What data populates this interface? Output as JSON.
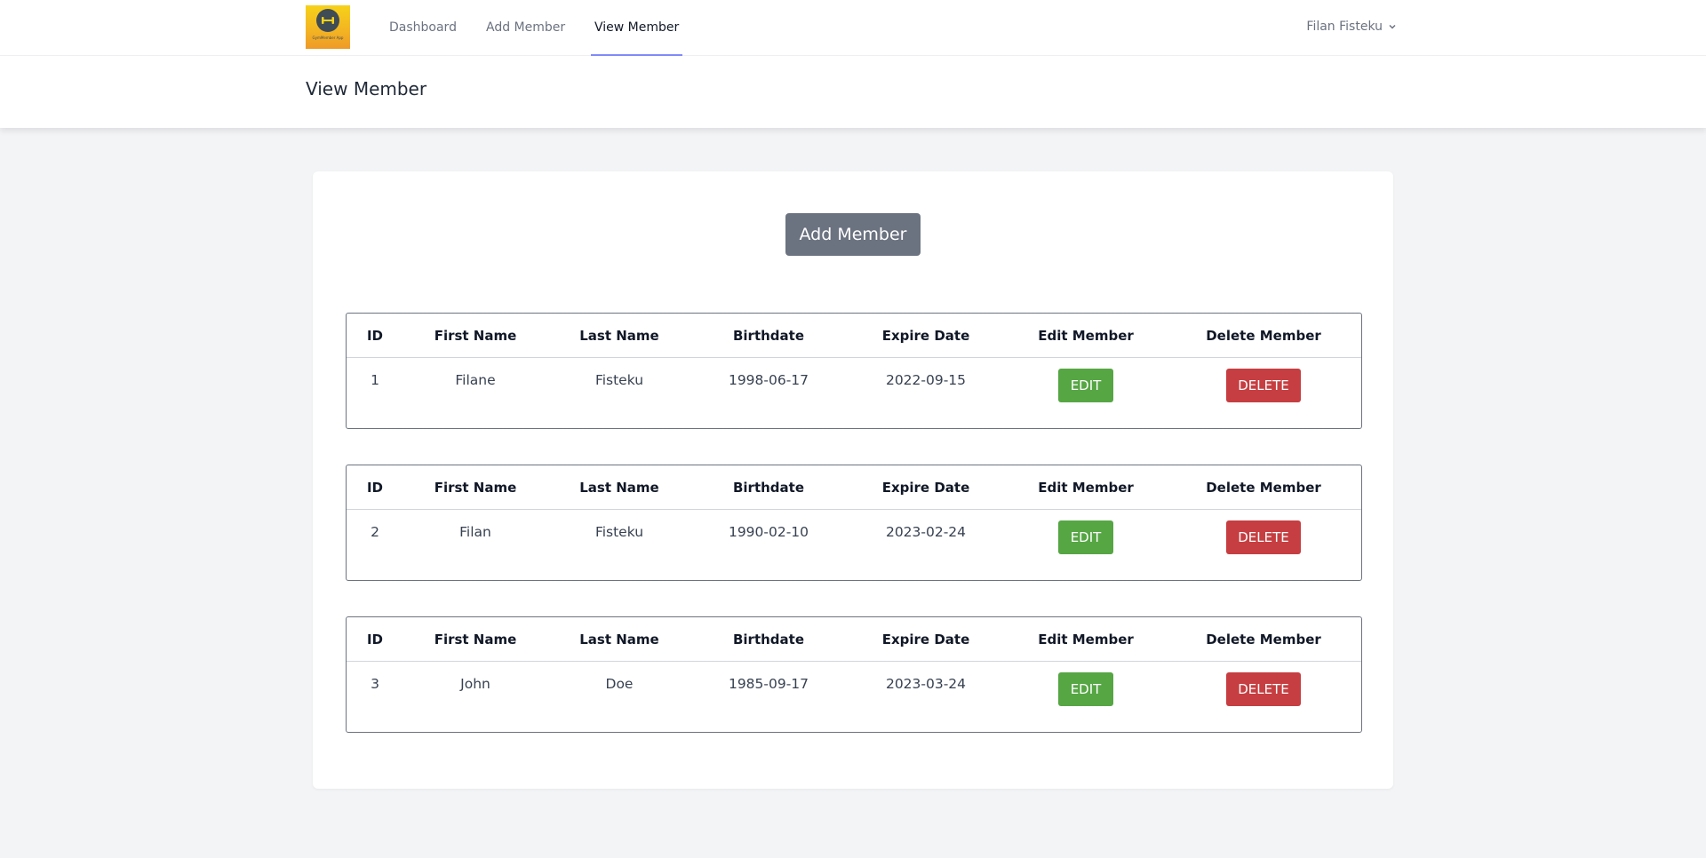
{
  "nav": {
    "logo_text": "GymMember App",
    "links": [
      {
        "label": "Dashboard"
      },
      {
        "label": "Add Member"
      },
      {
        "label": "View Member"
      }
    ],
    "user": "Filan Fisteku"
  },
  "header": {
    "title": "View Member"
  },
  "main": {
    "add_button": "Add Member",
    "columns": [
      "ID",
      "First Name",
      "Last Name",
      "Birthdate",
      "Expire Date",
      "Edit Member",
      "Delete Member"
    ],
    "edit_label": "EDIT",
    "delete_label": "DELETE",
    "rows": [
      {
        "id": "1",
        "first": "Filane",
        "last": "Fisteku",
        "birthdate": "1998-06-17",
        "expire": "2022-09-15"
      },
      {
        "id": "2",
        "first": "Filan",
        "last": "Fisteku",
        "birthdate": "1990-02-10",
        "expire": "2023-02-24"
      },
      {
        "id": "3",
        "first": "John",
        "last": "Doe",
        "birthdate": "1985-09-17",
        "expire": "2023-03-24"
      }
    ]
  },
  "colors": {
    "accent_underline": "#818cf8",
    "edit_button": "#56a644",
    "delete_button": "#c63e41",
    "add_button": "#6b7280"
  }
}
